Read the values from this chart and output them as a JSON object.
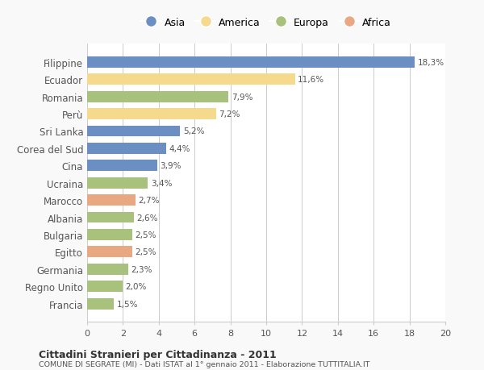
{
  "categories": [
    "Francia",
    "Regno Unito",
    "Germania",
    "Egitto",
    "Bulgaria",
    "Albania",
    "Marocco",
    "Ucraina",
    "Cina",
    "Corea del Sud",
    "Sri Lanka",
    "Perù",
    "Romania",
    "Ecuador",
    "Filippine"
  ],
  "values": [
    1.5,
    2.0,
    2.3,
    2.5,
    2.5,
    2.6,
    2.7,
    3.4,
    3.9,
    4.4,
    5.2,
    7.2,
    7.9,
    11.6,
    18.3
  ],
  "labels": [
    "1,5%",
    "2,0%",
    "2,3%",
    "2,5%",
    "2,5%",
    "2,6%",
    "2,7%",
    "3,4%",
    "3,9%",
    "4,4%",
    "5,2%",
    "7,2%",
    "7,9%",
    "11,6%",
    "18,3%"
  ],
  "colors": [
    "#a8c17c",
    "#a8c17c",
    "#a8c17c",
    "#e8a882",
    "#a8c17c",
    "#a8c17c",
    "#e8a882",
    "#a8c17c",
    "#6b8fc2",
    "#6b8fc2",
    "#6b8fc2",
    "#f5d98c",
    "#a8c17c",
    "#f5d98c",
    "#6b8fc2"
  ],
  "legend_labels": [
    "Asia",
    "America",
    "Europa",
    "Africa"
  ],
  "legend_colors": [
    "#6b8fc2",
    "#f5d98c",
    "#a8c17c",
    "#e8a882"
  ],
  "title_bold": "Cittadini Stranieri per Cittadinanza - 2011",
  "subtitle": "COMUNE DI SEGRATE (MI) - Dati ISTAT al 1° gennaio 2011 - Elaborazione TUTTITALIA.IT",
  "xlim": [
    0,
    20
  ],
  "xticks": [
    0,
    2,
    4,
    6,
    8,
    10,
    12,
    14,
    16,
    18,
    20
  ],
  "background_color": "#f9f9f9",
  "bar_background": "#ffffff",
  "grid_color": "#cccccc"
}
